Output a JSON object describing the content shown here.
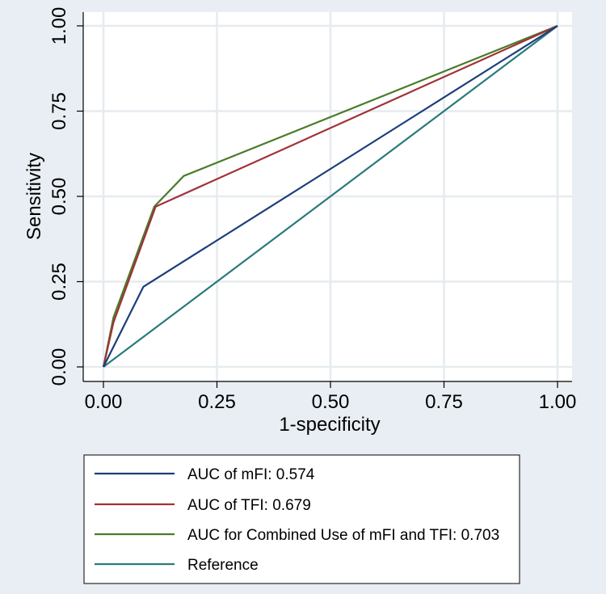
{
  "chart_data": {
    "type": "line",
    "xlabel": "1-specificity",
    "ylabel": "Sensitivity",
    "xlim": [
      0,
      1
    ],
    "ylim": [
      0,
      1
    ],
    "grid": true,
    "legend_position": "bottom",
    "x_ticks": [
      "0.00",
      "0.25",
      "0.50",
      "0.75",
      "1.00"
    ],
    "y_ticks": [
      "0.00",
      "0.25",
      "0.50",
      "0.75",
      "1.00"
    ],
    "series": [
      {
        "name": "AUC of mFI: 0.574",
        "color": "#1a3e79",
        "points": [
          [
            0,
            0
          ],
          [
            0.088,
            0.235
          ],
          [
            1,
            1
          ]
        ]
      },
      {
        "name": "AUC of TFI: 0.679",
        "color": "#a03238",
        "points": [
          [
            0,
            0
          ],
          [
            0.022,
            0.13
          ],
          [
            0.115,
            0.47
          ],
          [
            1,
            1
          ]
        ]
      },
      {
        "name": "AUC for Combined Use of mFI and TFI: 0.703",
        "color": "#4a7c2a",
        "points": [
          [
            0,
            0
          ],
          [
            0.022,
            0.145
          ],
          [
            0.112,
            0.47
          ],
          [
            0.177,
            0.56
          ],
          [
            1,
            1
          ]
        ]
      },
      {
        "name": "Reference",
        "color": "#2a7a7a",
        "points": [
          [
            0,
            0
          ],
          [
            1,
            1
          ]
        ]
      }
    ]
  }
}
